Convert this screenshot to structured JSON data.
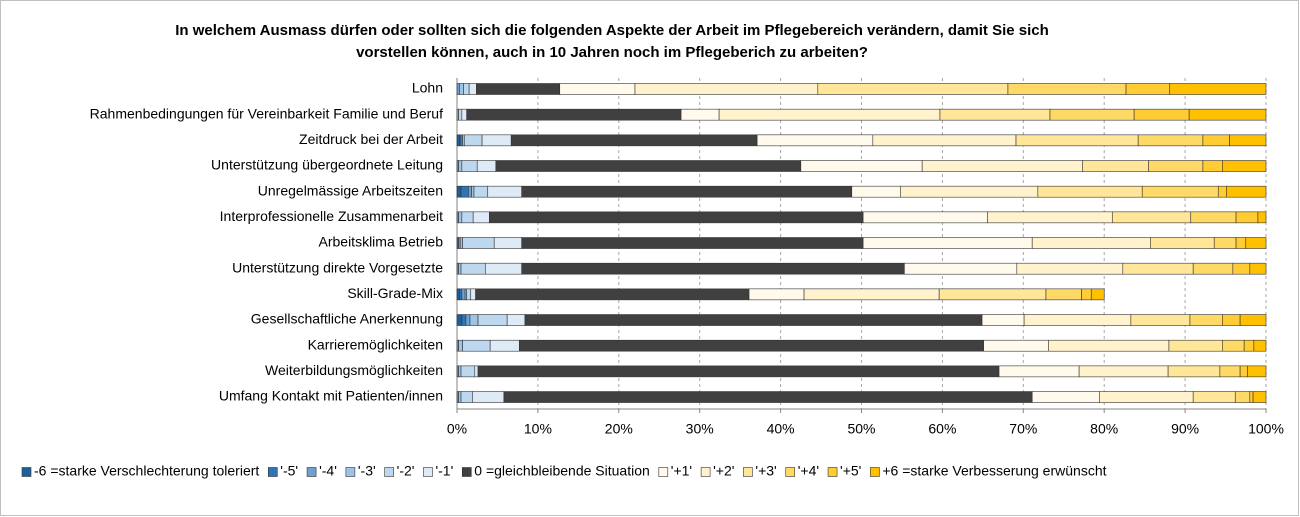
{
  "chart_data": {
    "type": "stacked_barh",
    "title": [
      "In welchem Ausmass dürfen oder sollten sich die folgenden Aspekte der Arbeit im Pflegebereich verändern, damit Sie sich",
      "vorstellen können, auch in 10 Jahren noch im Pflegeberich zu arbeiten?"
    ],
    "categories": [
      "Lohn",
      "Rahmenbedingungen für Vereinbarkeit Familie und Beruf",
      "Zeitdruck bei der Arbeit",
      "Unterstützung übergeordnete Leitung",
      "Unregelmässige Arbeitszeiten",
      "Interprofessionelle Zusammenarbeit",
      "Arbeitsklima Betrieb",
      "Unterstützung direkte Vorgesetzte",
      "Skill-Grade-Mix",
      "Gesellschaftliche Anerkennung",
      "Karrieremöglichkeiten",
      "Weiterbildungsmöglichkeiten",
      "Umfang Kontakt mit Patienten/innen"
    ],
    "series": [
      {
        "name": "-6 =starke Verschlechterung toleriert",
        "color": "#1f5f99",
        "values": [
          0,
          0,
          0.3,
          0,
          0.5,
          0,
          0,
          0,
          0.3,
          0.6,
          0,
          0,
          0
        ]
      },
      {
        "name": "'-5'",
        "color": "#2e75b6",
        "values": [
          0,
          0,
          0.2,
          0,
          0.9,
          0,
          0.2,
          0,
          0.3,
          0.5,
          0,
          0,
          0
        ]
      },
      {
        "name": "'-4'",
        "color": "#6fa0d0",
        "values": [
          0.3,
          0,
          0.2,
          0.2,
          0.4,
          0.2,
          0.2,
          0.2,
          0.4,
          0.5,
          0.2,
          0.2,
          0.2
        ]
      },
      {
        "name": "'-3'",
        "color": "#9dc3e6",
        "values": [
          0.5,
          0.2,
          0.2,
          0.4,
          0.3,
          0.4,
          0.3,
          0.3,
          0.2,
          1.0,
          0.5,
          0.3,
          0.3
        ]
      },
      {
        "name": "'-2'",
        "color": "#bdd7ee",
        "values": [
          0.7,
          0.4,
          2.2,
          1.9,
          1.7,
          1.4,
          3.9,
          3.0,
          0.5,
          3.6,
          3.4,
          1.7,
          1.4
        ]
      },
      {
        "name": "'-1'",
        "color": "#deebf7",
        "values": [
          0.9,
          0.6,
          3.6,
          2.3,
          4.2,
          2.0,
          3.4,
          4.5,
          0.6,
          2.2,
          3.6,
          0.4,
          3.9
        ]
      },
      {
        "name": "0 =gleichbleibende Situation",
        "color": "#404040",
        "values": [
          10.3,
          26.5,
          30.4,
          37.7,
          40.8,
          46.2,
          42.2,
          47.3,
          33.8,
          56.5,
          57.4,
          64.4,
          65.3
        ]
      },
      {
        "name": "'+1'",
        "color": "#fffaeb",
        "values": [
          9.3,
          4.7,
          14.3,
          15.0,
          6.0,
          15.4,
          20.9,
          13.9,
          6.8,
          5.2,
          8.0,
          9.9,
          8.3
        ]
      },
      {
        "name": "'+2'",
        "color": "#fff2cc",
        "values": [
          22.6,
          27.3,
          17.7,
          19.8,
          17.0,
          15.4,
          14.6,
          13.1,
          16.7,
          13.2,
          14.9,
          11.0,
          11.6
        ]
      },
      {
        "name": "'+3'",
        "color": "#ffe699",
        "values": [
          23.5,
          13.6,
          15.1,
          8.2,
          12.9,
          9.7,
          7.9,
          8.7,
          13.2,
          7.3,
          6.6,
          6.4,
          5.2
        ]
      },
      {
        "name": "'+4'",
        "color": "#ffd966",
        "values": [
          14.6,
          10.4,
          8.0,
          6.7,
          9.4,
          5.6,
          2.7,
          4.9,
          4.4,
          4.0,
          2.7,
          2.5,
          1.8
        ]
      },
      {
        "name": "'+5'",
        "color": "#ffcc33",
        "values": [
          5.4,
          6.8,
          3.3,
          2.4,
          1.0,
          2.7,
          1.2,
          2.1,
          1.2,
          2.2,
          1.2,
          0.9,
          0.4
        ]
      },
      {
        "name": "+6 =starke Verbesserung erwünscht",
        "color": "#ffc000",
        "values": [
          11.9,
          9.5,
          4.5,
          5.4,
          4.9,
          1.0,
          2.5,
          2.0,
          1.6,
          3.2,
          1.5,
          2.3,
          1.6
        ]
      }
    ],
    "xlim": [
      0,
      100
    ],
    "xticks": [
      {
        "value": 0,
        "label": "0%"
      },
      {
        "value": 10,
        "label": "10%"
      },
      {
        "value": 20,
        "label": "20%"
      },
      {
        "value": 30,
        "label": "30%"
      },
      {
        "value": 40,
        "label": "40%"
      },
      {
        "value": 50,
        "label": "50%"
      },
      {
        "value": 60,
        "label": "60%"
      },
      {
        "value": 70,
        "label": "70%"
      },
      {
        "value": 80,
        "label": "80%"
      },
      {
        "value": 90,
        "label": "90%"
      },
      {
        "value": 100,
        "label": "100%"
      }
    ],
    "grid": true,
    "legend": "bottom"
  }
}
